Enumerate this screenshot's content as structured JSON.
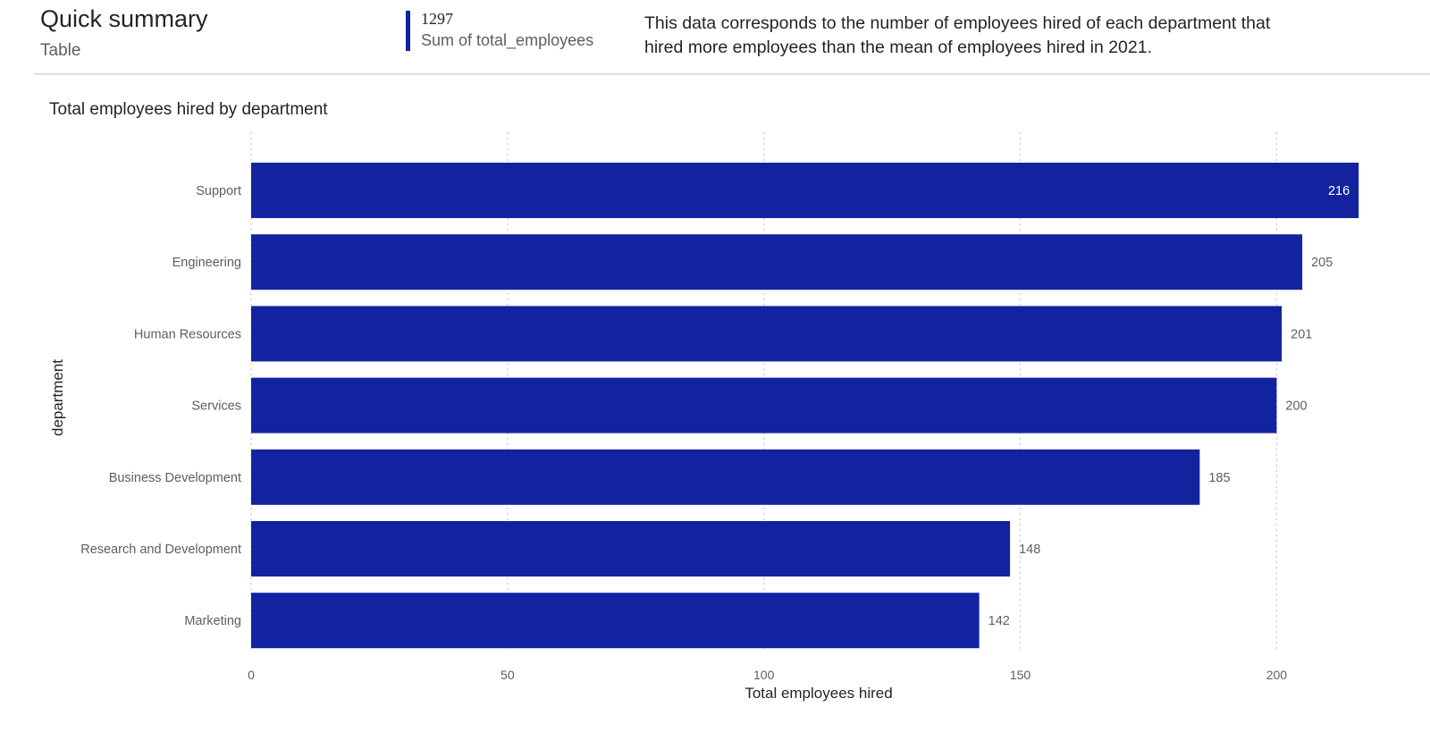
{
  "header": {
    "title": "Quick summary",
    "subtitle": "Table",
    "kpi_value": "1297",
    "kpi_label": "Sum of total_employees",
    "description": "This data corresponds to the number of employees hired of each department that hired more employees than the mean of employees hired in 2021."
  },
  "colors": {
    "bar": "#13239f",
    "accent": "#13239f"
  },
  "chart_data": {
    "type": "bar",
    "orientation": "horizontal",
    "title": "Total employees hired by department",
    "xlabel": "Total employees hired",
    "ylabel": "department",
    "categories": [
      "Support",
      "Engineering",
      "Human Resources",
      "Services",
      "Business Development",
      "Research and Development",
      "Marketing"
    ],
    "values": [
      216,
      205,
      201,
      200,
      185,
      148,
      142
    ],
    "xlim": [
      0,
      225
    ],
    "xticks": [
      0,
      50,
      100,
      150,
      200
    ],
    "grid": "vertical dotted",
    "data_labels": true
  }
}
